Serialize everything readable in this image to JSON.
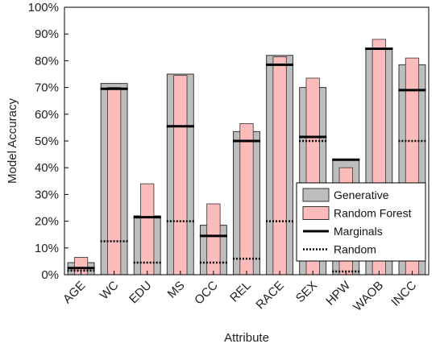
{
  "chart_data": {
    "type": "bar",
    "xlabel": "Attribute",
    "ylabel": "Model Accuracy",
    "ylim": [
      0,
      100
    ],
    "yticks": [
      "0%",
      "10%",
      "20%",
      "30%",
      "40%",
      "50%",
      "60%",
      "70%",
      "80%",
      "90%",
      "100%"
    ],
    "categories": [
      "AGE",
      "WC",
      "EDU",
      "MS",
      "OCC",
      "REL",
      "RACE",
      "SEX",
      "HPW",
      "WAOB",
      "INCC"
    ],
    "series": [
      {
        "name": "Generative",
        "kind": "bar",
        "color": "#bdbdbd",
        "values": [
          4.5,
          71.5,
          22,
          75,
          18.5,
          53.5,
          82,
          70,
          43,
          84.5,
          78.5
        ]
      },
      {
        "name": "Random Forest",
        "kind": "bar",
        "color": "#fcbcbc",
        "values": [
          6.5,
          70,
          34,
          74.5,
          26.5,
          56.5,
          81.5,
          73.5,
          40,
          88,
          81
        ]
      },
      {
        "name": "Marginals",
        "kind": "hline-solid",
        "color": "#000000",
        "values": [
          2.5,
          69.5,
          21.5,
          55.5,
          14.5,
          50,
          78.5,
          51.5,
          43,
          84.5,
          69
        ]
      },
      {
        "name": "Random",
        "kind": "hline-dotted",
        "color": "#000000",
        "values": [
          1.5,
          12.5,
          4.5,
          20,
          4.5,
          6,
          20,
          50,
          1.2,
          84.5,
          50
        ]
      }
    ],
    "legend": "center-right",
    "grid": false
  }
}
